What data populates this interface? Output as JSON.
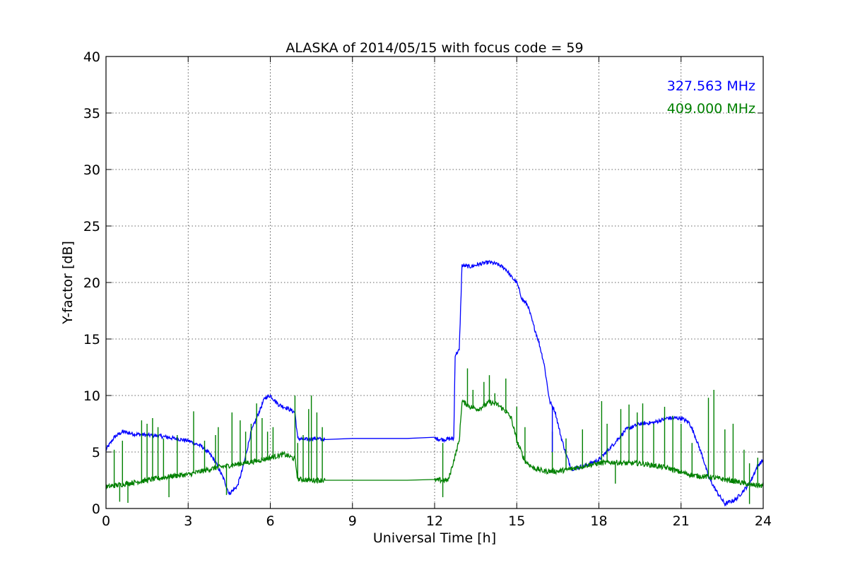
{
  "chart_data": {
    "type": "line",
    "title": "ALASKA of 2014/05/15 with focus code = 59",
    "xlabel": "Universal Time [h]",
    "ylabel": "Y-factor [dB]",
    "xlim": [
      0,
      24
    ],
    "ylim": [
      0,
      40
    ],
    "xticks": [
      0,
      3,
      6,
      9,
      12,
      15,
      18,
      21,
      24
    ],
    "yticks": [
      0,
      5,
      10,
      15,
      20,
      25,
      30,
      35,
      40
    ],
    "grid": true,
    "legend_position": "top-right",
    "series": [
      {
        "name": "327.563 MHz",
        "color": "#0000ff",
        "x": [
          0,
          0.3,
          0.6,
          1.0,
          1.5,
          2.0,
          2.5,
          3.0,
          3.5,
          3.8,
          4.0,
          4.3,
          4.5,
          4.8,
          5.0,
          5.3,
          5.6,
          5.8,
          6.0,
          6.3,
          6.6,
          6.9,
          7.0,
          7.3,
          7.6,
          8.0,
          9,
          10,
          11,
          12.0,
          12.3,
          12.7,
          12.75,
          12.9,
          13.0,
          13.3,
          13.6,
          14.0,
          14.3,
          14.6,
          14.8,
          15.0,
          15.2,
          15.4,
          15.6,
          15.8,
          16.0,
          16.2,
          16.4,
          16.6,
          16.8,
          17.0,
          17.5,
          18.0,
          18.5,
          19.0,
          19.5,
          20.0,
          20.5,
          21.0,
          21.3,
          21.5,
          21.8,
          22.0,
          22.3,
          22.6,
          23.0,
          23.5,
          23.8,
          24.0
        ],
        "y": [
          5.2,
          6.3,
          6.8,
          6.6,
          6.5,
          6.4,
          6.2,
          6.0,
          5.5,
          4.8,
          4.1,
          2.6,
          1.3,
          2.0,
          3.6,
          6.8,
          8.6,
          9.8,
          10.0,
          9.2,
          8.9,
          8.5,
          6.2,
          6.1,
          6.2,
          6.1,
          6.2,
          6.2,
          6.2,
          6.2,
          6.1,
          6.2,
          13.6,
          14.0,
          21.5,
          21.4,
          21.6,
          21.8,
          21.6,
          21.2,
          20.5,
          20.0,
          18.5,
          18.0,
          16.3,
          14.8,
          12.8,
          9.5,
          8.6,
          6.5,
          4.8,
          3.5,
          3.8,
          4.3,
          5.6,
          7.0,
          7.5,
          7.6,
          8.0,
          8.0,
          7.6,
          6.5,
          4.5,
          2.8,
          1.5,
          0.4,
          0.8,
          2.2,
          3.8,
          4.3
        ]
      },
      {
        "name": "409.000 MHz",
        "color": "#008000",
        "x": [
          0,
          0.5,
          1.0,
          1.5,
          2.0,
          2.5,
          3.0,
          3.5,
          4.0,
          4.5,
          5.0,
          5.5,
          6.0,
          6.5,
          6.9,
          7.0,
          7.5,
          8.0,
          9,
          10,
          11,
          12.0,
          12.5,
          12.9,
          13.0,
          13.3,
          13.6,
          14.0,
          14.3,
          14.6,
          14.8,
          15.0,
          15.3,
          15.6,
          16.0,
          16.5,
          17.0,
          17.5,
          18.0,
          18.5,
          19.0,
          19.5,
          20.0,
          20.5,
          21.0,
          21.5,
          22.0,
          22.5,
          23.0,
          23.5,
          24.0
        ],
        "y": [
          1.9,
          2.1,
          2.3,
          2.5,
          2.7,
          2.9,
          3.0,
          3.3,
          3.6,
          3.8,
          4.0,
          4.2,
          4.5,
          4.8,
          4.4,
          2.6,
          2.5,
          2.5,
          2.5,
          2.5,
          2.5,
          2.5,
          2.5,
          6.0,
          9.5,
          9.0,
          8.8,
          9.4,
          9.2,
          8.6,
          8.0,
          6.0,
          4.2,
          3.6,
          3.3,
          3.3,
          3.5,
          3.8,
          4.0,
          4.1,
          4.0,
          4.0,
          3.8,
          3.6,
          3.2,
          2.9,
          2.8,
          2.6,
          2.4,
          2.1,
          2.0
        ]
      }
    ],
    "spikes": [
      {
        "series": 1,
        "x": [
          0.3,
          0.6,
          1.3,
          1.5,
          1.7,
          1.9,
          2.1,
          2.6,
          3.2,
          3.6,
          4.0,
          4.1,
          4.6,
          4.9,
          5.1,
          5.3,
          5.5,
          5.7,
          5.9,
          6.1,
          6.9,
          7.0,
          7.2,
          7.4,
          7.5,
          7.7,
          7.9,
          12.3,
          13.2,
          13.4,
          13.8,
          14.0,
          14.2,
          14.6,
          15.0,
          15.3,
          16.3,
          16.8,
          17.4,
          18.1,
          18.3,
          18.8,
          19.1,
          19.4,
          19.6,
          20.0,
          20.4,
          20.7,
          21.0,
          21.4,
          22.0,
          22.2,
          22.6,
          22.9,
          23.3,
          23.5,
          23.8
        ],
        "y": [
          5.2,
          6.0,
          7.8,
          7.5,
          8.0,
          7.2,
          6.2,
          6.5,
          8.6,
          6.0,
          6.5,
          7.2,
          8.5,
          7.8,
          6.8,
          7.5,
          9.3,
          8.0,
          6.8,
          7.2,
          10.0,
          5.8,
          6.5,
          8.8,
          10.0,
          8.5,
          7.2,
          5.8,
          12.4,
          10.5,
          11.2,
          11.8,
          10.2,
          11.5,
          9.0,
          7.2,
          6.8,
          6.2,
          7.0,
          9.5,
          7.5,
          8.8,
          9.2,
          8.5,
          9.3,
          7.5,
          9.0,
          8.2,
          7.5,
          5.8,
          9.8,
          10.5,
          7.0,
          7.5,
          5.2,
          4.0,
          4.5
        ]
      },
      {
        "series": 1,
        "x": [
          0.5,
          0.8,
          2.3,
          4.4,
          12.3,
          18.6,
          23.5
        ],
        "y": [
          0.6,
          0.5,
          1.0,
          1.2,
          1.0,
          2.2,
          0.4
        ]
      },
      {
        "series": 0,
        "x": [
          4.5,
          4.6,
          16.3,
          22.6
        ],
        "y": [
          1.2,
          1.6,
          5.0,
          0.3
        ]
      }
    ]
  }
}
